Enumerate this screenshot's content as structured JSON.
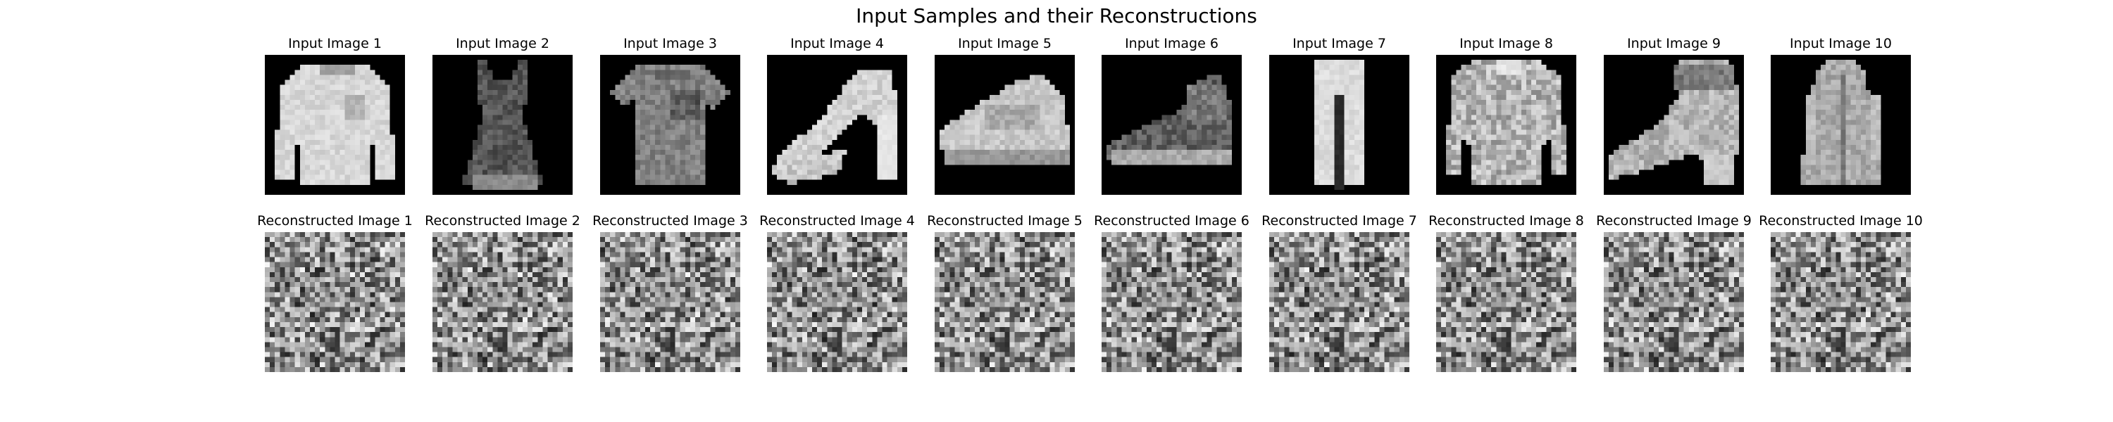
{
  "figure": {
    "title": "Input Samples and their Reconstructions"
  },
  "input_titles": [
    "Input Image 1",
    "Input Image 2",
    "Input Image 3",
    "Input Image 4",
    "Input Image 5",
    "Input Image 6",
    "Input Image 7",
    "Input Image 8",
    "Input Image 9",
    "Input Image 10"
  ],
  "reconstruction_titles": [
    "Reconstructed Image 1",
    "Reconstructed Image 2",
    "Reconstructed Image 3",
    "Reconstructed Image 4",
    "Reconstructed Image 5",
    "Reconstructed Image 6",
    "Reconstructed Image 7",
    "Reconstructed Image 8",
    "Reconstructed Image 9",
    "Reconstructed Image 10"
  ],
  "input_contents": [
    "pullover",
    "dress",
    "t-shirt",
    "sandal",
    "sneaker",
    "sneaker",
    "trouser",
    "shirt",
    "ankle-boot",
    "coat"
  ],
  "colormap": "gray"
}
